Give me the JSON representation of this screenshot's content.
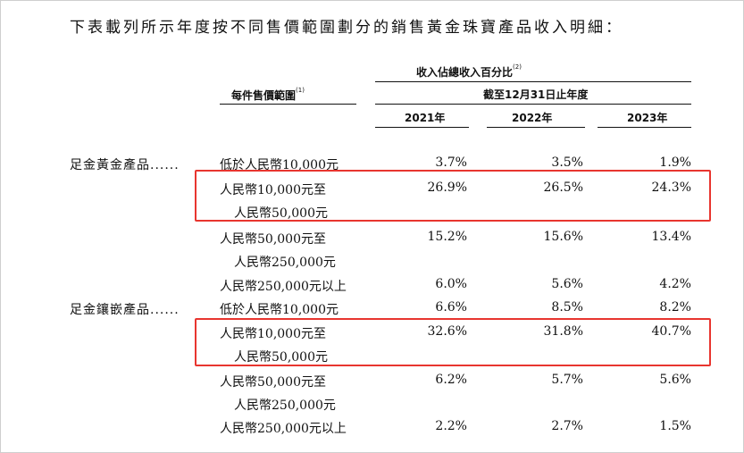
{
  "intro": "下表載列所示年度按不同售價範圍劃分的銷售黃金珠寶產品收入明細：",
  "header": {
    "range_label": "每件售價範圍",
    "range_note": "(1)",
    "group_label": "收入佔總收入百分比",
    "group_note": "(2)",
    "period_label": "截至12月31日止年度",
    "years": [
      "2021年",
      "2022年",
      "2023年"
    ]
  },
  "categories": [
    {
      "label": "足金黃金產品......"
    },
    {
      "label": "足金鑲嵌產品......"
    }
  ],
  "rows": [
    {
      "range": [
        "低於人民幣10,000元"
      ],
      "values": [
        "3.7%",
        "3.5%",
        "1.9%"
      ]
    },
    {
      "range": [
        "人民幣10,000元至",
        "人民幣50,000元"
      ],
      "values": [
        "26.9%",
        "26.5%",
        "24.3%"
      ]
    },
    {
      "range": [
        "人民幣50,000元至",
        "人民幣250,000元"
      ],
      "values": [
        "15.2%",
        "15.6%",
        "13.4%"
      ]
    },
    {
      "range": [
        "人民幣250,000元以上"
      ],
      "values": [
        "6.0%",
        "5.6%",
        "4.2%"
      ]
    },
    {
      "range": [
        "低於人民幣10,000元"
      ],
      "values": [
        "6.6%",
        "8.5%",
        "8.2%"
      ]
    },
    {
      "range": [
        "人民幣10,000元至",
        "人民幣50,000元"
      ],
      "values": [
        "32.6%",
        "31.8%",
        "40.7%"
      ]
    },
    {
      "range": [
        "人民幣50,000元至",
        "人民幣250,000元"
      ],
      "values": [
        "6.2%",
        "5.7%",
        "5.6%"
      ]
    },
    {
      "range": [
        "人民幣250,000元以上"
      ],
      "values": [
        "2.2%",
        "2.7%",
        "1.5%"
      ]
    }
  ],
  "highlight_color": "#e8352f"
}
